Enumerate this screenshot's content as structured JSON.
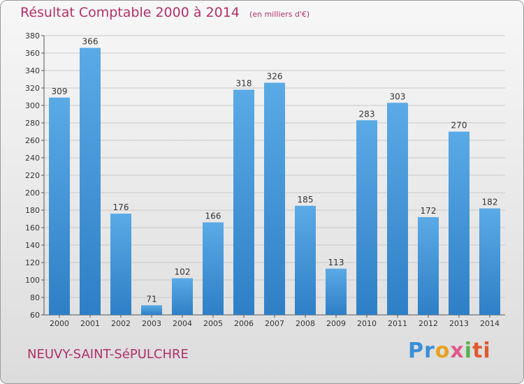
{
  "header": {
    "title": "Résultat Comptable 2000 à 2014",
    "unit": "(en milliers d'€)"
  },
  "footer": {
    "location": "NEUVY-SAINT-SéPULCHRE",
    "logo": [
      "Pr",
      "o",
      "x",
      "i",
      "ti"
    ]
  },
  "colors": {
    "bar_top": "#5aaae6",
    "bar_bottom": "#2e7fc6",
    "title": "#b0306a"
  },
  "chart_data": {
    "type": "bar",
    "title": "Résultat Comptable 2000 à 2014",
    "subtitle": "(en milliers d'€)",
    "xlabel": "",
    "ylabel": "",
    "categories": [
      "2000",
      "2001",
      "2002",
      "2003",
      "2004",
      "2005",
      "2006",
      "2007",
      "2008",
      "2009",
      "2010",
      "2011",
      "2012",
      "2013",
      "2014"
    ],
    "values": [
      309,
      366,
      176,
      71,
      102,
      166,
      318,
      326,
      185,
      113,
      283,
      303,
      172,
      270,
      182
    ],
    "ylim": [
      60,
      380
    ],
    "yticks": [
      60,
      80,
      100,
      120,
      140,
      160,
      180,
      200,
      220,
      240,
      260,
      280,
      300,
      320,
      340,
      360,
      380
    ],
    "grid": true
  }
}
